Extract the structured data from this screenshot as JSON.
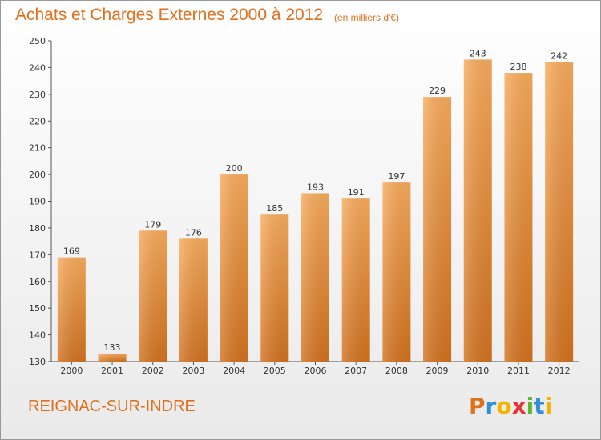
{
  "header": {
    "title": "Achats et Charges Externes 2000 à 2012",
    "subtitle": "(en milliers d'€)"
  },
  "footer": {
    "city": "REIGNAC-SUR-INDRE",
    "logo_text": "Proxiti"
  },
  "colors": {
    "accent": "#e0701c",
    "bar_light": "#f6a85a",
    "bar_dark": "#d47321",
    "axis": "#555555"
  },
  "chart_data": {
    "type": "bar",
    "title": "Achats et Charges Externes 2000 à 2012",
    "subtitle": "(en milliers d'€)",
    "categories": [
      "2000",
      "2001",
      "2002",
      "2003",
      "2004",
      "2005",
      "2006",
      "2007",
      "2008",
      "2009",
      "2010",
      "2011",
      "2012"
    ],
    "values": [
      169,
      133,
      179,
      176,
      200,
      185,
      193,
      191,
      197,
      229,
      243,
      238,
      242
    ],
    "xlabel": "",
    "ylabel": "",
    "ylim": [
      130,
      250
    ],
    "yticks": [
      130,
      140,
      150,
      160,
      170,
      180,
      190,
      200,
      210,
      220,
      230,
      240,
      250
    ],
    "grid": false,
    "legend": "none",
    "data_labels": true
  }
}
